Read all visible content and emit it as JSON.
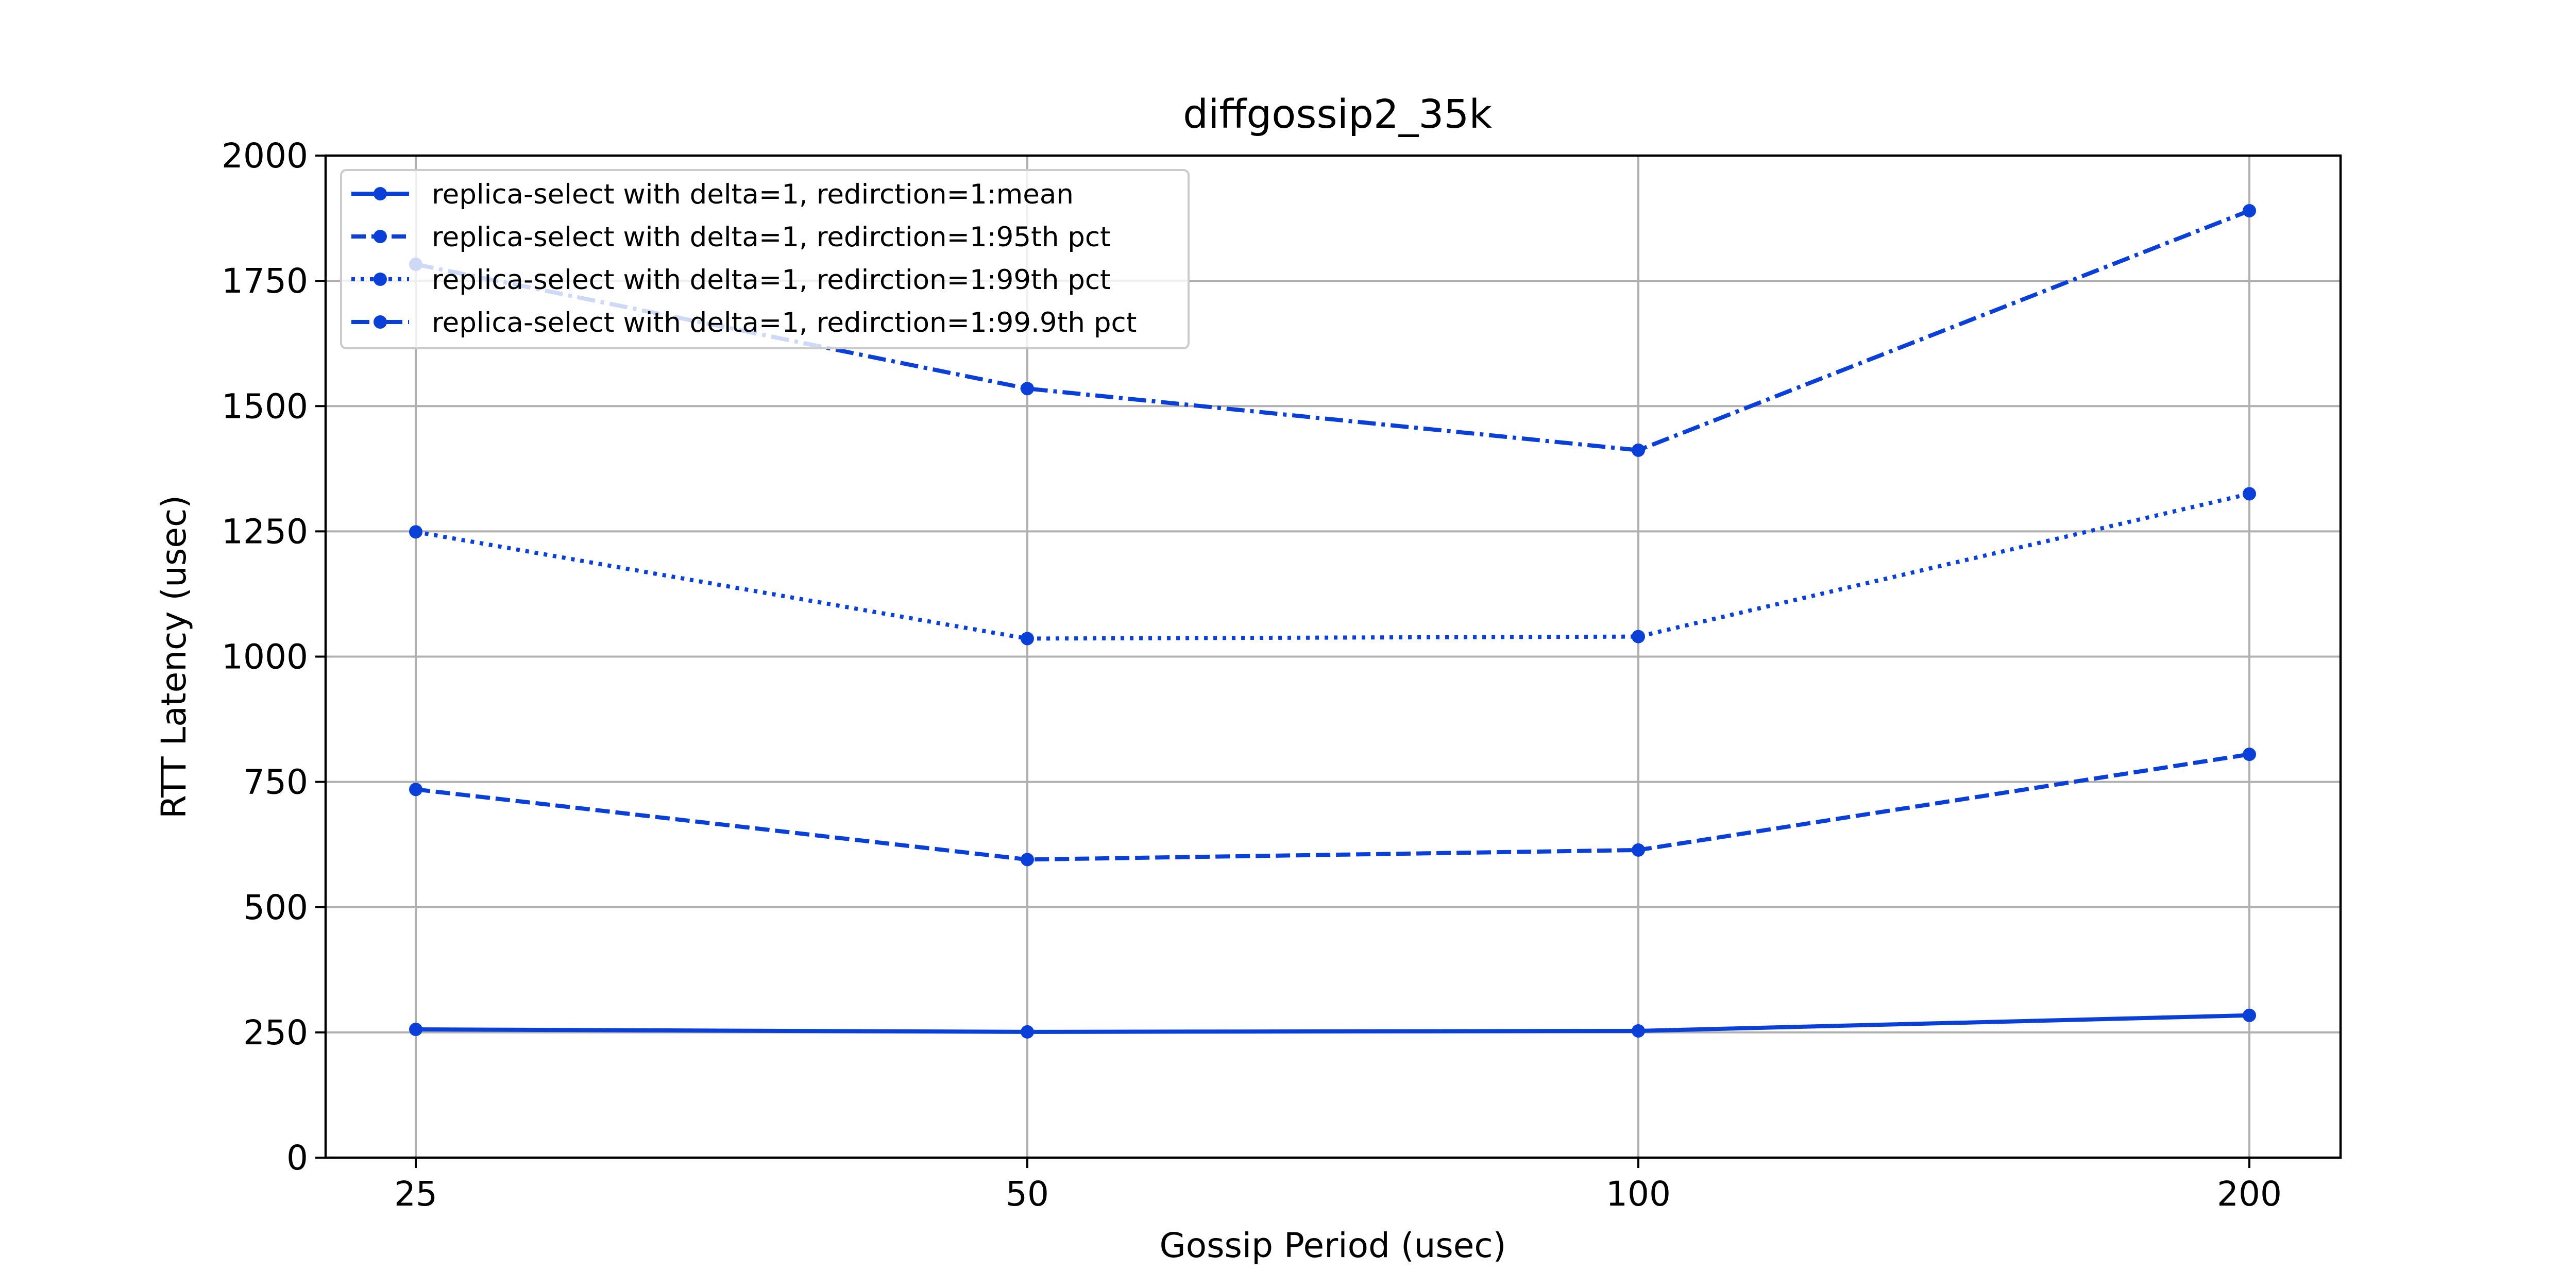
{
  "chart_data": {
    "type": "line",
    "title": "diffgossip2_35k",
    "xlabel": "Gossip Period (usec)",
    "ylabel": "RTT Latency (usec)",
    "categories": [
      "25",
      "50",
      "100",
      "200"
    ],
    "ylim": [
      0,
      2000
    ],
    "yticks": [
      0,
      250,
      500,
      750,
      1000,
      1250,
      1500,
      1750,
      2000
    ],
    "grid": true,
    "legend_position": "top-left",
    "color": "#0a3fd8",
    "series": [
      {
        "name": "replica-select with delta=1, redirction=1:mean",
        "style": "solid",
        "values": [
          256,
          251,
          253,
          284
        ]
      },
      {
        "name": "replica-select with delta=1, redirction=1:95th pct",
        "style": "dashed",
        "values": [
          735,
          595,
          614,
          805
        ]
      },
      {
        "name": "replica-select with delta=1, redirction=1:99th pct",
        "style": "dotted",
        "values": [
          1249,
          1036,
          1040,
          1325
        ]
      },
      {
        "name": "replica-select with delta=1, redirction=1:99.9th pct",
        "style": "dashdot",
        "values": [
          1783,
          1535,
          1412,
          1890
        ]
      }
    ]
  }
}
